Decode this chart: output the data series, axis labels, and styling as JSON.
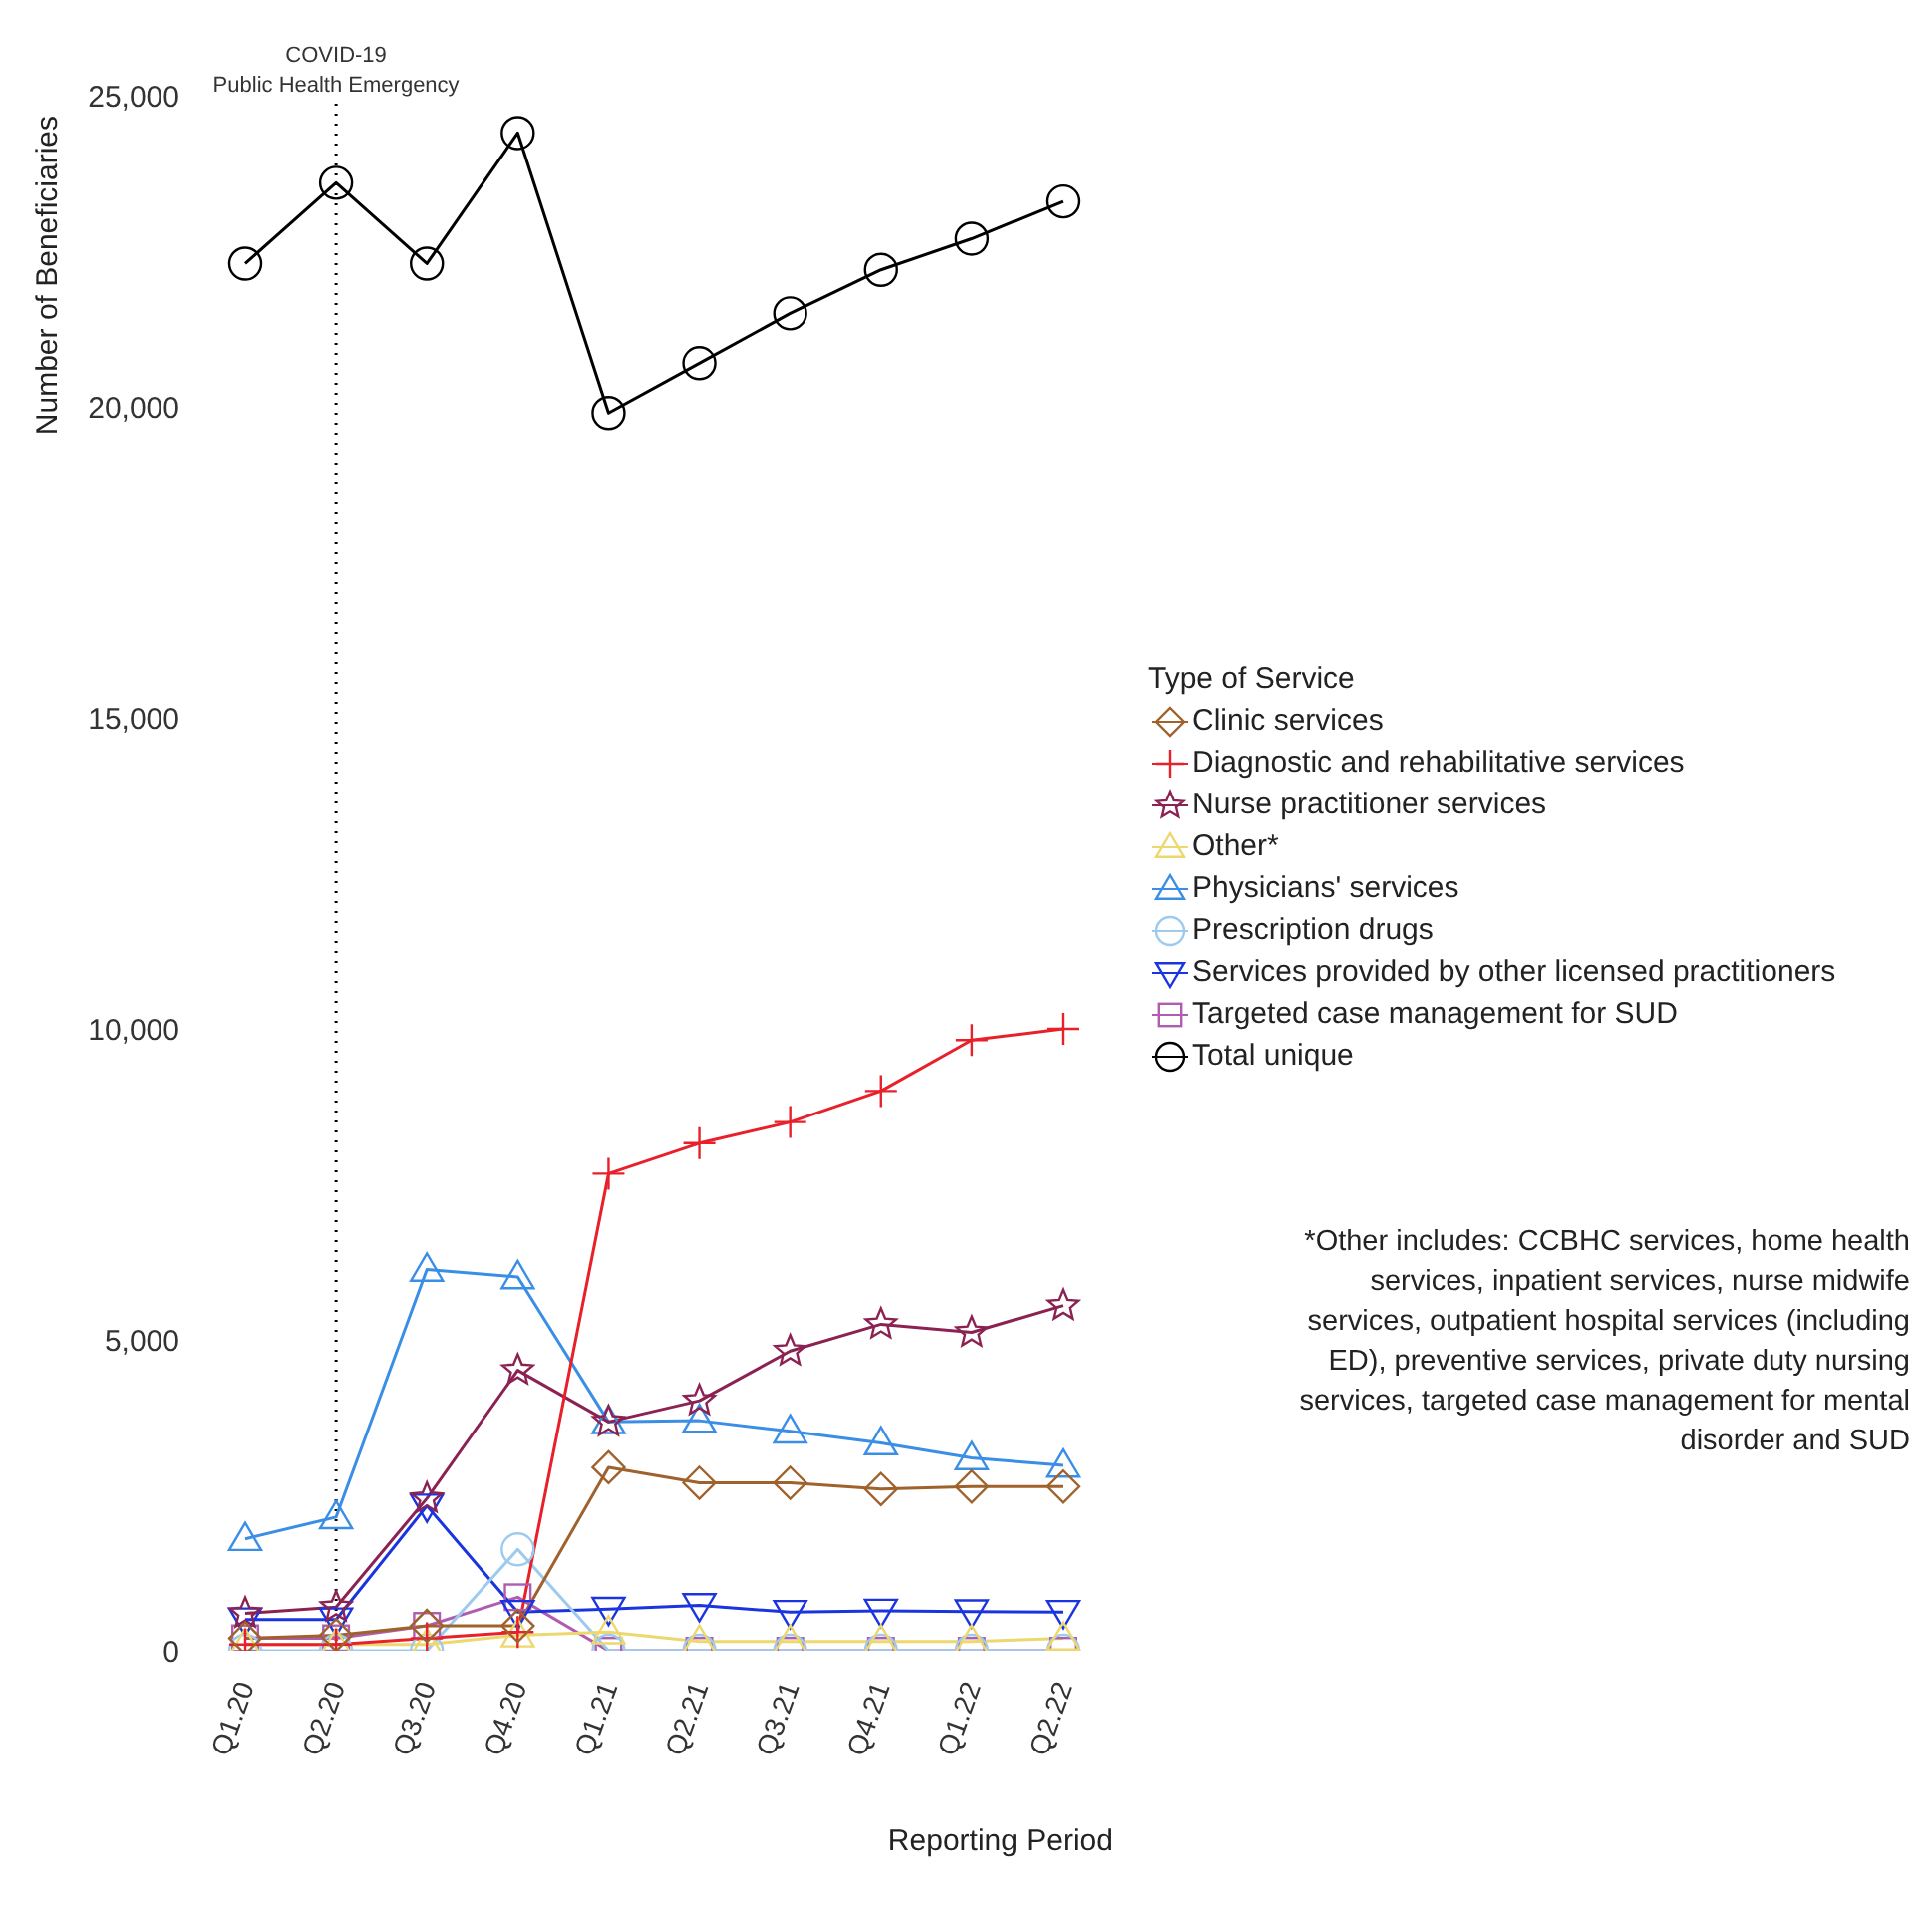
{
  "chart_data": {
    "type": "line",
    "xlabel": "Reporting Period",
    "ylabel": "Number of Beneficiaries",
    "legend_title": "Type of Service",
    "legend": "right",
    "categories": [
      "Q1.20",
      "Q2.20",
      "Q3.20",
      "Q4.20",
      "Q1.21",
      "Q2.21",
      "Q3.21",
      "Q4.21",
      "Q1.22",
      "Q2.22"
    ],
    "ylim": [
      0,
      25000
    ],
    "yticks": [
      {
        "value": 0,
        "label": "0"
      },
      {
        "value": 5000,
        "label": "5,000"
      },
      {
        "value": 10000,
        "label": "10,000"
      },
      {
        "value": 15000,
        "label": "15,000"
      },
      {
        "value": 20000,
        "label": "20,000"
      },
      {
        "value": 25000,
        "label": "25,000"
      }
    ],
    "grid": false,
    "line_style": "solid",
    "ref_lines": [
      {
        "axis": "x",
        "value": "Q2.20",
        "label": "COVID-19\nPublic Health Emergency",
        "color": "#000000",
        "line_style": "dotted"
      }
    ],
    "annotations": [
      "*Other includes: CCBHC services, home health services, inpatient services, nurse midwife services, outpatient hospital services (including ED), preventive services, private duty nursing services, targeted case management for mental disorder and SUD"
    ],
    "series": [
      {
        "name": "Clinic services",
        "color": "#a0622d",
        "marker": "diamond",
        "values": [
          200,
          250,
          400,
          400,
          2950,
          2700,
          2700,
          2600,
          2640,
          2640
        ]
      },
      {
        "name": "Diagnostic and rehabilitative services",
        "color": "#e8202a",
        "marker": "cross",
        "values": [
          100,
          100,
          200,
          300,
          7670,
          8160,
          8500,
          9000,
          9820,
          10000
        ]
      },
      {
        "name": "Nurse practitioner services",
        "color": "#8b2252",
        "marker": "star",
        "values": [
          600,
          700,
          2450,
          4510,
          3680,
          4020,
          4820,
          5250,
          5120,
          5550
        ]
      },
      {
        "name": "Other*",
        "color": "#ecd86e",
        "marker": "triangle",
        "values": [
          100,
          100,
          100,
          250,
          300,
          150,
          150,
          150,
          150,
          200
        ]
      },
      {
        "name": "Physicians' services",
        "color": "#3a8ee6",
        "marker": "triangle",
        "values": [
          1800,
          2150,
          6130,
          6010,
          3680,
          3700,
          3530,
          3340,
          3100,
          2980
        ]
      },
      {
        "name": "Prescription drugs",
        "color": "#9ccbef",
        "marker": "circle",
        "values": [
          0,
          0,
          0,
          1630,
          0,
          0,
          0,
          0,
          0,
          0
        ]
      },
      {
        "name": "Services provided by other licensed practitioners",
        "color": "#1a35e0",
        "marker": "triangle-down",
        "values": [
          500,
          500,
          2330,
          620,
          670,
          730,
          620,
          640,
          630,
          620
        ]
      },
      {
        "name": "Targeted case management for SUD",
        "color": "#b05cb0",
        "marker": "square",
        "values": [
          200,
          200,
          400,
          860,
          0,
          0,
          0,
          0,
          0,
          0
        ]
      },
      {
        "name": "Total unique",
        "color": "#000000",
        "marker": "circle",
        "values": [
          22300,
          23600,
          22300,
          24400,
          19900,
          20700,
          21500,
          22200,
          22700,
          23300
        ]
      }
    ]
  }
}
